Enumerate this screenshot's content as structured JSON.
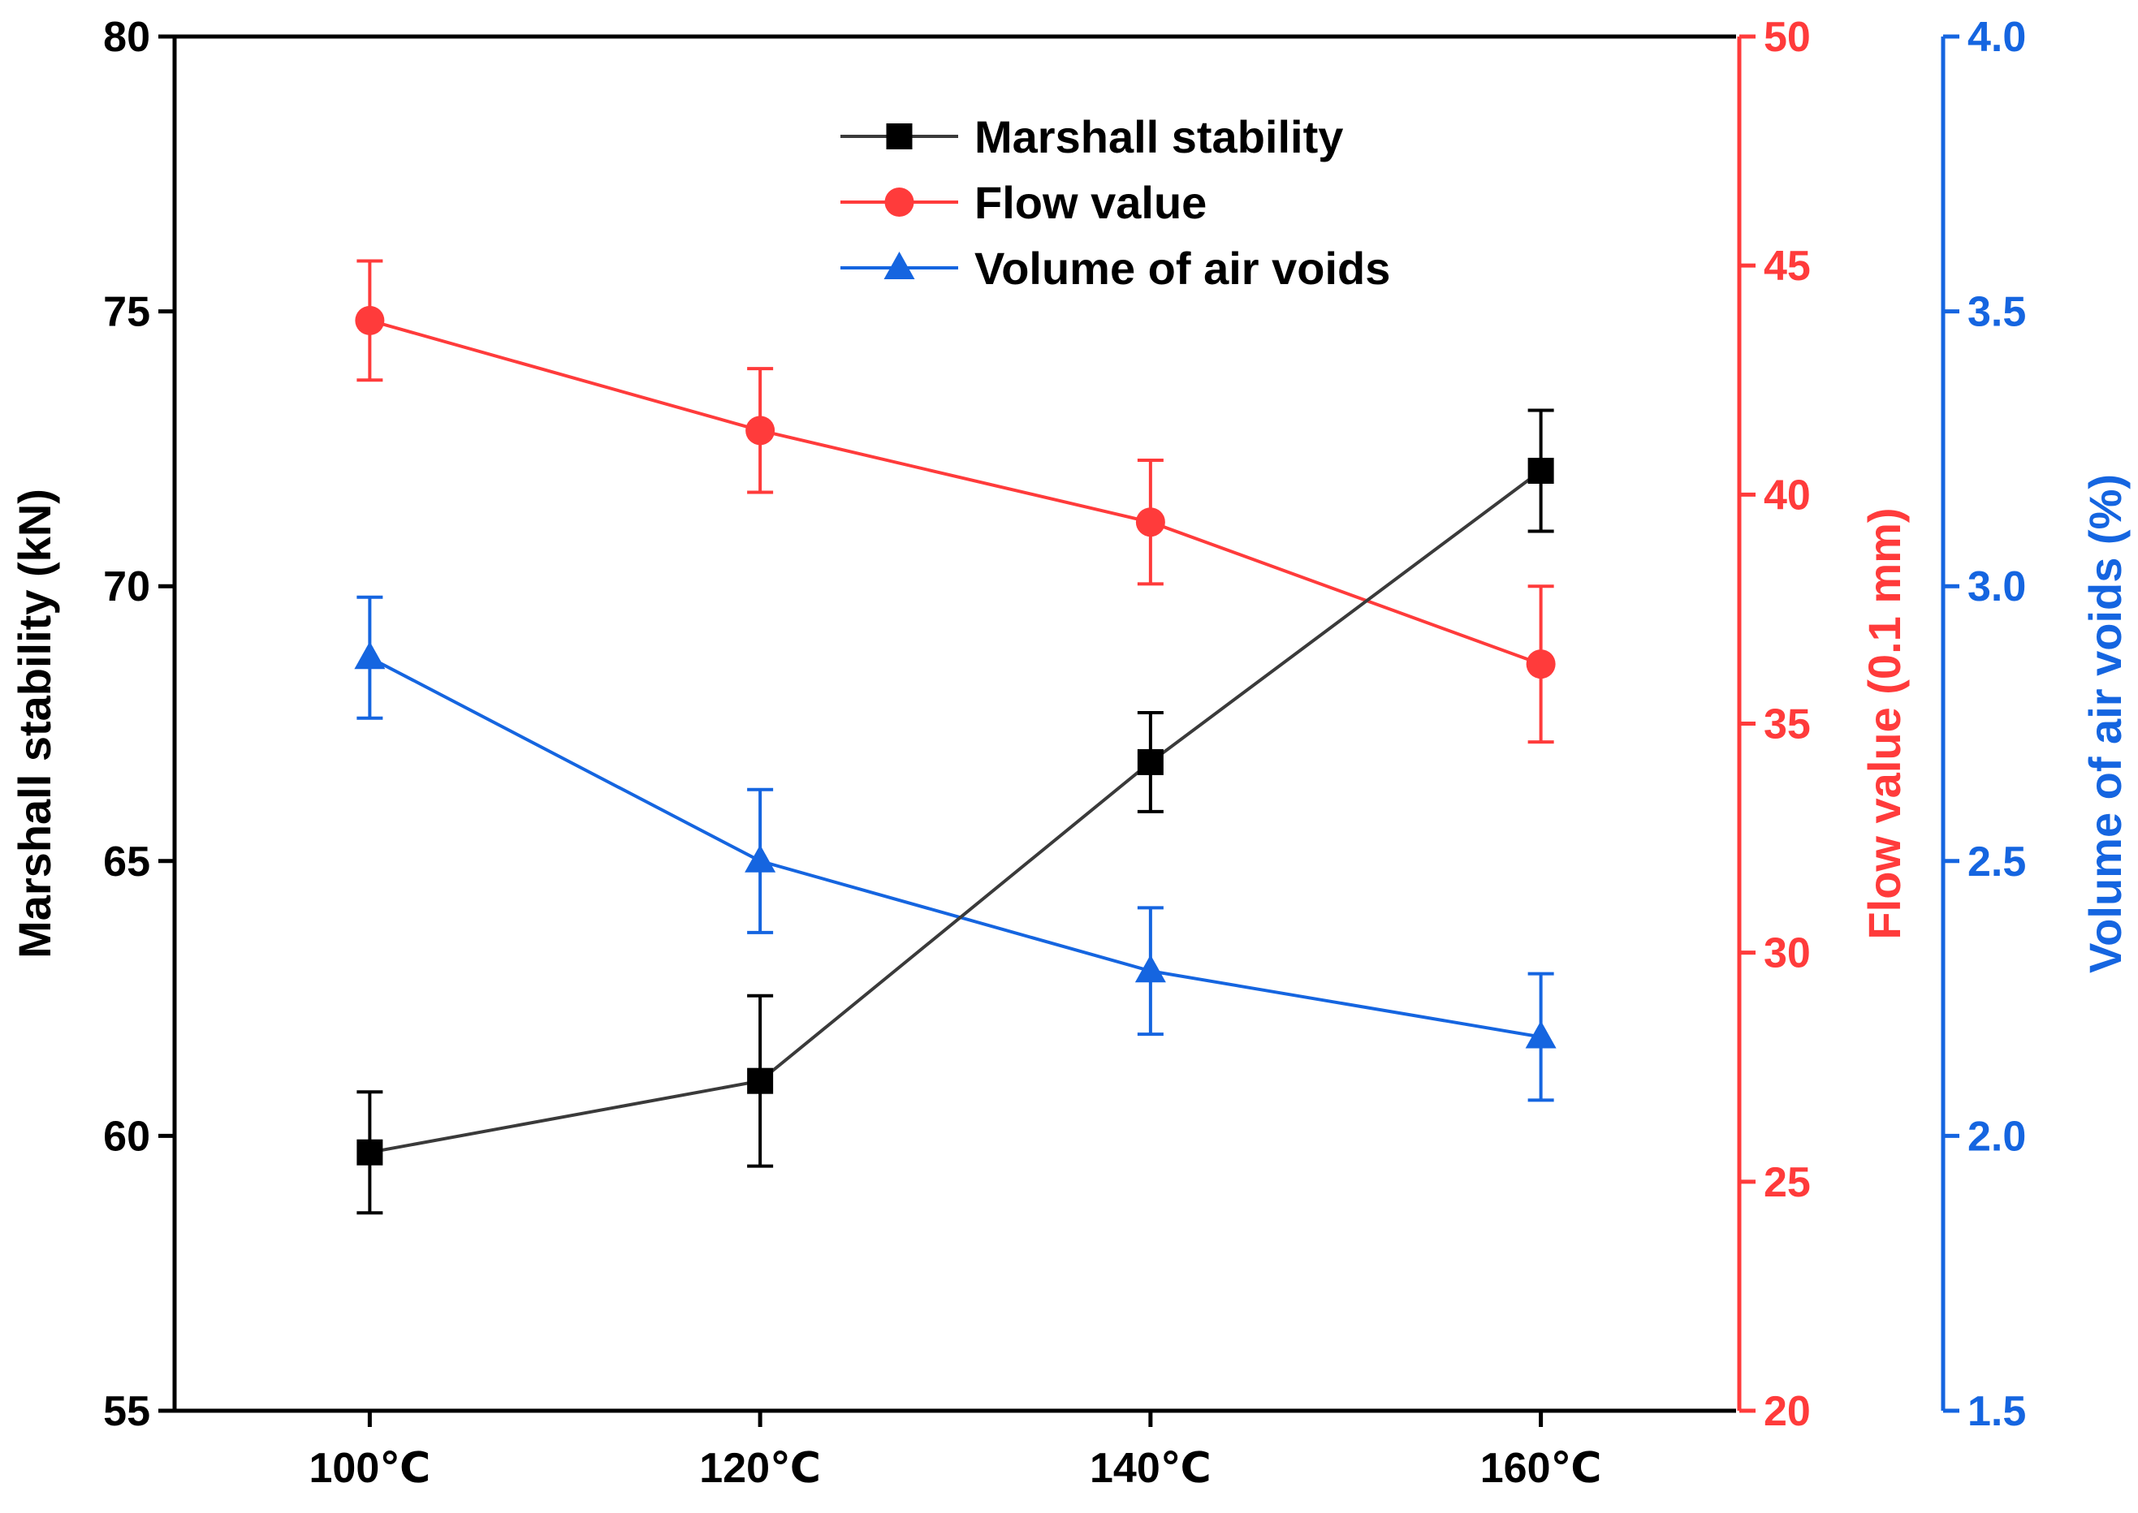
{
  "chart_data": {
    "type": "line",
    "categories": [
      "100℃",
      "120℃",
      "140℃",
      "160℃"
    ],
    "x_values": [
      100,
      120,
      140,
      160
    ],
    "xlim": [
      90,
      170
    ],
    "axes": {
      "left": {
        "label": "Marshall stability (kN)",
        "ylim": [
          55,
          80
        ],
        "ticks": [
          55,
          60,
          65,
          70,
          75,
          80
        ],
        "color": "#000000"
      },
      "right1": {
        "label": "Flow value (0.1 mm)",
        "ylim": [
          20,
          50
        ],
        "ticks": [
          20,
          25,
          30,
          35,
          40,
          45,
          50
        ],
        "color": "#ff3b3b"
      },
      "right2": {
        "label": "Volume of air voids (%)",
        "ylim": [
          1.5,
          4.0
        ],
        "ticks": [
          "1.5",
          "2.0",
          "2.5",
          "3.0",
          "3.5",
          "4.0"
        ],
        "color": "#1565e0"
      }
    },
    "series": [
      {
        "name": "Marshall stability",
        "axis": "left",
        "marker": "square",
        "color": "#000000",
        "line_color": "#3a3a3a",
        "values": [
          59.7,
          61.0,
          66.8,
          72.1
        ],
        "errors": [
          1.1,
          1.55,
          0.9,
          1.1
        ]
      },
      {
        "name": "Flow value",
        "axis": "right1",
        "marker": "circle",
        "color": "#ff3b3b",
        "line_color": "#ff3b3b",
        "values": [
          43.8,
          41.4,
          39.4,
          36.3
        ],
        "errors": [
          1.3,
          1.35,
          1.35,
          1.7
        ]
      },
      {
        "name": "Volume of air voids",
        "axis": "right2",
        "marker": "triangle",
        "color": "#1565e0",
        "line_color": "#1565e0",
        "values": [
          2.87,
          2.5,
          2.3,
          2.18
        ],
        "errors": [
          0.11,
          0.13,
          0.115,
          0.115
        ]
      }
    ],
    "legend": {
      "placement": "top-center",
      "entries": [
        "Marshall stability",
        "Flow value",
        "Volume of air voids"
      ]
    },
    "grid": false
  }
}
